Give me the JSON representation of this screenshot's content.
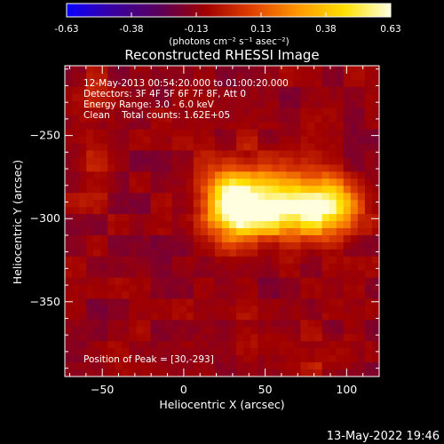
{
  "chart_data": {
    "type": "heatmap",
    "title": "Reconstructed RHESSI Image",
    "xlabel": "Heliocentric X (arcsec)",
    "ylabel": "Heliocentric Y (arcsec)",
    "xlim": [
      -73,
      120
    ],
    "ylim": [
      -395,
      -208
    ],
    "xticks": [
      -50,
      0,
      50,
      100
    ],
    "yticks": [
      -250,
      -300,
      -350
    ],
    "colorbar": {
      "ticks": [
        "-0.63",
        "-0.38",
        "-0.13",
        "0.13",
        "0.38",
        "0.63"
      ],
      "range": [
        -0.63,
        0.63
      ],
      "units": "(photons cm⁻² s⁻¹ asec⁻²)",
      "colormap": [
        "#0a00ff",
        "#3a00a0",
        "#5a005a",
        "#a00000",
        "#e04000",
        "#ff9800",
        "#ffe000",
        "#ffffe0"
      ]
    },
    "info_lines": [
      "12-May-2013 00:54:20.000 to 01:00:20.000",
      "Detectors: 3F 4F 5F 6F 7F 8F, Att 0",
      "Energy Range: 3.0 - 6.0 keV",
      "Clean    Total counts: 1.62E+05"
    ],
    "peak_label": "Position of Peak = [30,-293]",
    "peak_position": [
      30,
      -293
    ],
    "sources": [
      {
        "x": 30,
        "y": -293,
        "amp": 0.63,
        "sx": 10,
        "sy": 12
      },
      {
        "x": 60,
        "y": -295,
        "amp": 0.55,
        "sx": 20,
        "sy": 11
      },
      {
        "x": 90,
        "y": -293,
        "amp": 0.5,
        "sx": 12,
        "sy": 12
      },
      {
        "x": 45,
        "y": -285,
        "amp": 0.28,
        "sx": 25,
        "sy": 18
      },
      {
        "x": -60,
        "y": -230,
        "amp": 0.12,
        "sx": 12,
        "sy": 15
      },
      {
        "x": -55,
        "y": -275,
        "amp": 0.1,
        "sx": 10,
        "sy": 15
      },
      {
        "x": 50,
        "y": -375,
        "amp": 0.08,
        "sx": 30,
        "sy": 10
      },
      {
        "x": 90,
        "y": -385,
        "amp": 0.08,
        "sx": 15,
        "sy": 8
      }
    ]
  },
  "timestamp": "13-May-2022 19:46"
}
